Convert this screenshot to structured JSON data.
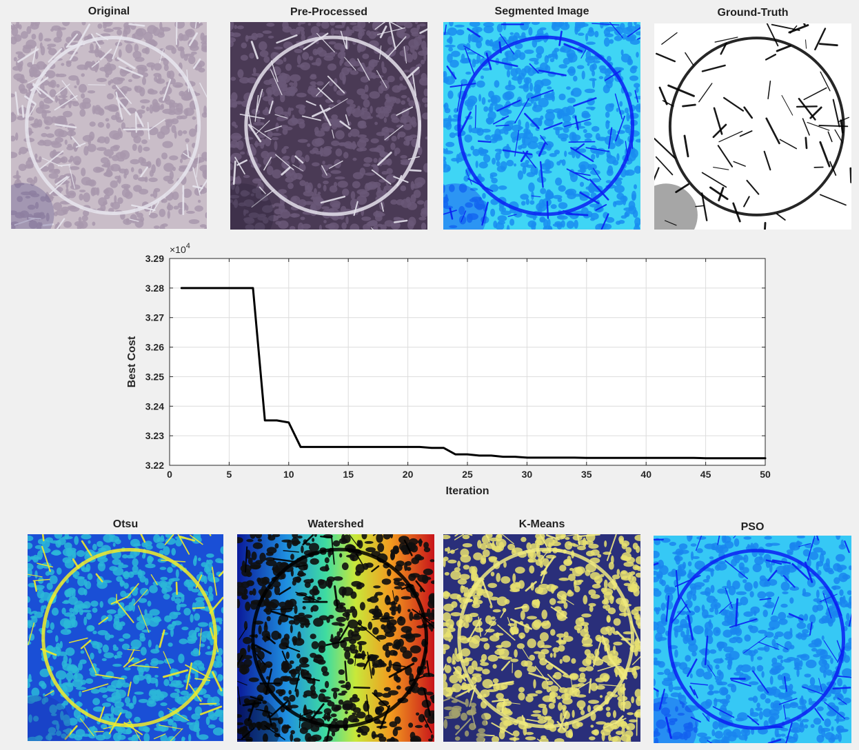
{
  "figure": {
    "top_panels": [
      {
        "title": "Original"
      },
      {
        "title": "Pre-Processed"
      },
      {
        "title": "Segmented Image"
      },
      {
        "title": "Ground-Truth"
      }
    ],
    "bottom_panels": [
      {
        "title": "Otsu"
      },
      {
        "title": "Watershed"
      },
      {
        "title": "K-Means"
      },
      {
        "title": "PSO"
      }
    ]
  },
  "palettes": {
    "original": {
      "bg": "#c9bdc8",
      "cell": "#a898ad",
      "edge": "#e8e6ee",
      "dark": "#5c4f8a"
    },
    "preprocessed": {
      "bg": "#4a3a55",
      "cell": "#6a5878",
      "edge": "#e5e2ec",
      "dark": "#2a2238"
    },
    "segmented": {
      "bg": "#3fd5f5",
      "cell": "#1a8cf0",
      "edge": "#0a1ff2",
      "dark": "#0a1ff2"
    },
    "groundtruth": {
      "bg": "#ffffff",
      "cell": "#ffffff",
      "edge": "#000000",
      "dark": "#000000"
    },
    "otsu": {
      "bg": "#1a4fd6",
      "cell": "#2bb7d8",
      "edge": "#f2ec2a",
      "dark": "#1a2fb0"
    },
    "watershed": {
      "bg": "#1a1a1a",
      "cell": "#101010",
      "edge": "#000000",
      "dark": "#000000"
    },
    "kmeans": {
      "bg": "#2a2f7a",
      "cell": "#e8e070",
      "edge": "#f0ea80",
      "dark": "#232866"
    },
    "pso": {
      "bg": "#36c8f5",
      "cell": "#1a85ef",
      "edge": "#0a1ff2",
      "dark": "#0a1ff2"
    }
  },
  "chart_data": {
    "type": "line",
    "title": "",
    "xlabel": "Iteration",
    "ylabel": "Best Cost",
    "exponent_label": "×10",
    "exponent_power": "4",
    "xlim": [
      0,
      50
    ],
    "ylim": [
      3.22,
      3.29
    ],
    "xticks": [
      0,
      5,
      10,
      15,
      20,
      25,
      30,
      35,
      40,
      45,
      50
    ],
    "yticks": [
      3.22,
      3.23,
      3.24,
      3.25,
      3.26,
      3.27,
      3.28,
      3.29
    ],
    "ytick_labels": [
      "3.22",
      "3.23",
      "3.24",
      "3.25",
      "3.26",
      "3.27",
      "3.28",
      "3.29"
    ],
    "grid": true,
    "line_color": "#000000",
    "series": [
      {
        "x": [
          1,
          2,
          3,
          4,
          5,
          6,
          7,
          8,
          9,
          10,
          11,
          12,
          13,
          14,
          15,
          16,
          17,
          18,
          19,
          20,
          21,
          22,
          23,
          24,
          25,
          26,
          27,
          28,
          29,
          30,
          31,
          32,
          33,
          34,
          35,
          36,
          37,
          38,
          39,
          40,
          41,
          42,
          43,
          44,
          45,
          46,
          47,
          48,
          49,
          50
        ],
        "values": [
          3.28,
          3.28,
          3.28,
          3.28,
          3.28,
          3.28,
          3.28,
          3.2352,
          3.2352,
          3.2345,
          3.2262,
          3.2262,
          3.2262,
          3.2262,
          3.2262,
          3.2262,
          3.2262,
          3.2262,
          3.2262,
          3.2262,
          3.2262,
          3.2259,
          3.2259,
          3.2237,
          3.2237,
          3.2233,
          3.2233,
          3.2229,
          3.2229,
          3.2226,
          3.2226,
          3.2226,
          3.2226,
          3.2226,
          3.2225,
          3.2225,
          3.2225,
          3.2225,
          3.2225,
          3.2225,
          3.2225,
          3.2225,
          3.2225,
          3.2225,
          3.2224,
          3.2224,
          3.2224,
          3.2224,
          3.2224,
          3.2224
        ]
      }
    ]
  }
}
